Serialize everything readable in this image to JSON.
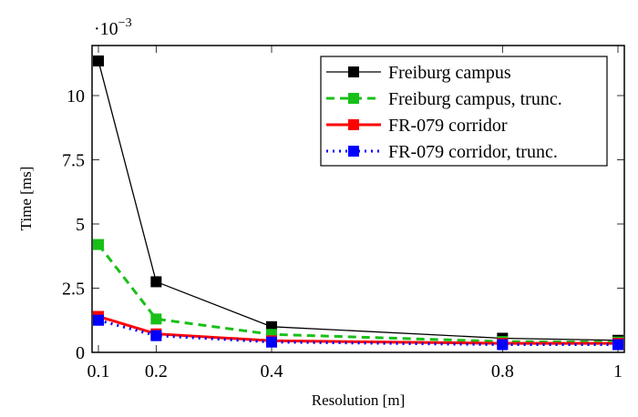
{
  "chart_data": {
    "type": "line",
    "title": "",
    "xlabel": "Resolution [m]",
    "ylabel": "Time [ms]",
    "y_scale_label": "·10",
    "y_scale_exponent": "−3",
    "xlim": [
      0.1,
      1
    ],
    "ylim": [
      0,
      11.95
    ],
    "xticks": [
      0.1,
      0.2,
      0.4,
      0.8,
      1
    ],
    "xtick_labels": [
      "0.1",
      "0.2",
      "0.4",
      "0.8",
      "1"
    ],
    "yticks": [
      0,
      2.5,
      5,
      7.5,
      10
    ],
    "ytick_labels": [
      "0",
      "2.5",
      "5",
      "7.5",
      "10"
    ],
    "legend_position": "top-right",
    "x": [
      0.1,
      0.2,
      0.4,
      0.8,
      1
    ],
    "series": [
      {
        "name": "Freiburg campus",
        "color": "#000000",
        "dash": "",
        "width": 1.3,
        "values": [
          11.35,
          2.75,
          1.0,
          0.55,
          0.47
        ]
      },
      {
        "name": "Freiburg campus, trunc.",
        "color": "#18c018",
        "dash": "9,6",
        "width": 3,
        "values": [
          4.2,
          1.3,
          0.7,
          0.42,
          0.4
        ]
      },
      {
        "name": "FR-079 corridor",
        "color": "#ff0000",
        "dash": "",
        "width": 3,
        "values": [
          1.4,
          0.72,
          0.45,
          0.35,
          0.35
        ]
      },
      {
        "name": "FR-079 corridor, trunc.",
        "color": "#0000ff",
        "dash": "2,5",
        "width": 3,
        "values": [
          1.25,
          0.65,
          0.4,
          0.3,
          0.3
        ]
      }
    ]
  }
}
